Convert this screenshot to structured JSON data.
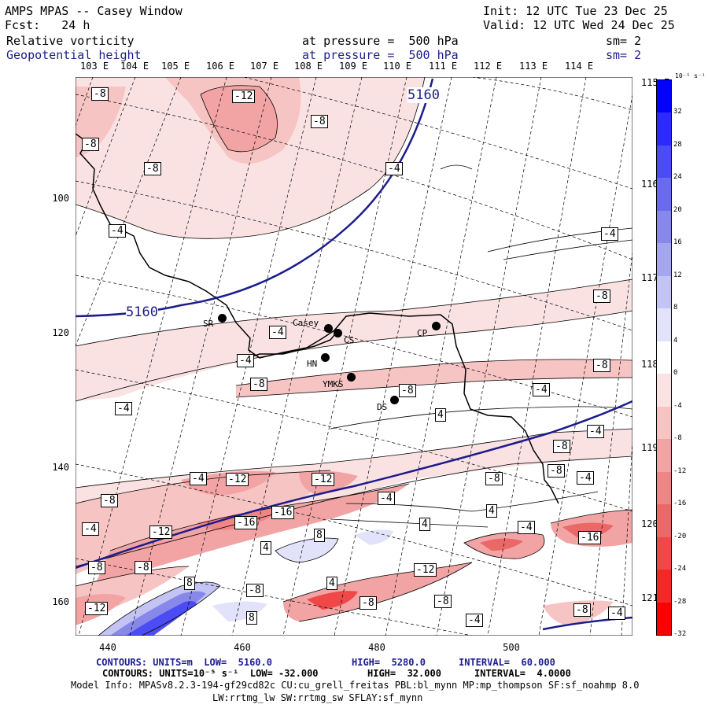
{
  "header": {
    "title": "AMPS MPAS -- Casey Window",
    "init": "Init: 12 UTC Tue 23 Dec 25",
    "fcst": "Fcst:   24 h",
    "valid": "Valid: 12 UTC Wed 24 Dec 25",
    "field1": "Relative vorticity",
    "field1_level": "at pressure =  500 hPa",
    "field1_sm": "sm= 2",
    "field2": "Geopotential height",
    "field2_level": "at pressure =  500 hPa",
    "field2_sm": "sm= 2"
  },
  "top_lon_labels": [
    "103 E",
    "104 E",
    "105 E",
    "106 E",
    "107 E",
    "108 E",
    "109 E",
    "110 E",
    "111 E",
    "112 E",
    "113 E",
    "114 E"
  ],
  "y_axis_labels": [
    "100",
    "120",
    "140",
    "160"
  ],
  "x_axis_labels": [
    "440",
    "460",
    "480",
    "500"
  ],
  "right_lat_labels": [
    "115 E",
    "116 E",
    "117 E",
    "118 E",
    "119 E",
    "120 E",
    "121 E"
  ],
  "colorbar": {
    "unit_label": "10⁻⁵ s⁻¹",
    "ticks": [
      "32",
      "28",
      "24",
      "20",
      "16",
      "12",
      "8",
      "4",
      "0",
      "-4",
      "-8",
      "-12",
      "-16",
      "-20",
      "-24",
      "-28",
      "-32"
    ],
    "colors": [
      "#0000ff",
      "#2b2bff",
      "#4c4cf5",
      "#6a6aef",
      "#8888ea",
      "#a6a6ee",
      "#c4c4f4",
      "#e2e2fa",
      "#ffffff",
      "#fbe2e2",
      "#f7c4c4",
      "#f2a4a4",
      "#ee8686",
      "#ea6868",
      "#f04848",
      "#f52828",
      "#ff0000"
    ]
  },
  "stations": [
    {
      "name": "SR"
    },
    {
      "name": "Casey"
    },
    {
      "name": "CS"
    },
    {
      "name": "HN"
    },
    {
      "name": "YMKS"
    },
    {
      "name": "DS"
    },
    {
      "name": "CP"
    }
  ],
  "height_labels": [
    "5160",
    "5160"
  ],
  "vort_labels": [
    "-8",
    "-12",
    "-8",
    "-8",
    "-8",
    "-4",
    "-4",
    "-4",
    "-4",
    "-4",
    "-8",
    "-8",
    "-8",
    "-4",
    "-8",
    "4",
    "-4",
    "-4",
    "-8",
    "-8",
    "-4",
    "-4",
    "-12",
    "-12",
    "-8",
    "-8",
    "-4",
    "4",
    "-16",
    "-16",
    "4",
    "-4",
    "-4",
    "-8",
    "-16",
    "-12",
    "-8",
    "4",
    "8",
    "8",
    "4",
    "-12",
    "-8",
    "-12",
    "-8",
    "-8",
    "-4",
    "8",
    "-4",
    "-8"
  ],
  "footer": {
    "line1_a": "CONTOURS: UNITS=m  LOW=  5160.0",
    "line1_b": "HIGH=  5280.0",
    "line1_c": "INTERVAL=  60.000",
    "line2_a": "CONTOURS: UNITS=10⁻⁵ s⁻¹  LOW= -32.000",
    "line2_b": "HIGH=  32.000",
    "line2_c": "INTERVAL=  4.0000",
    "line3": "Model Info: MPASv8.2.3-194-gf29cd82c CU:cu_grell_freitas PBL:bl_mynn MP:mp_thompson SF:sf_noahmp 8.0",
    "line4": "LW:rrtmg_lw SW:rrtmg_sw SFLAY:sf_mynn"
  }
}
